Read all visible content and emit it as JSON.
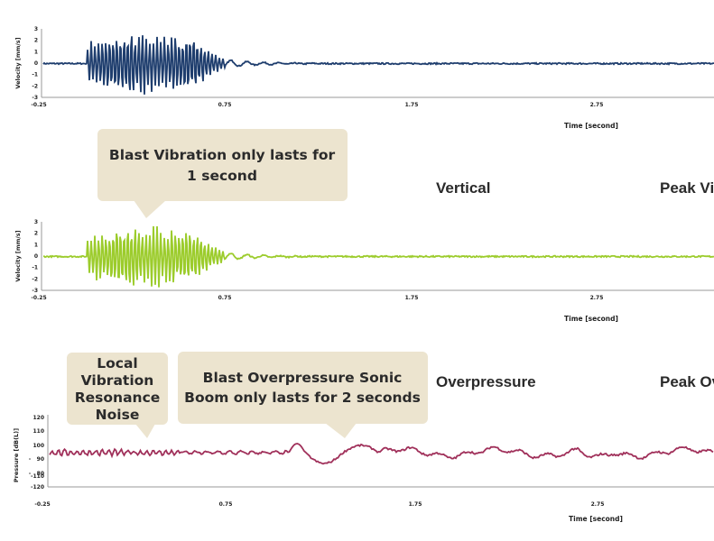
{
  "headers": {
    "vertical": "Vertical",
    "peak_vib": "Peak Vi",
    "overpressure": "Overpressure",
    "peak_ov": "Peak Ov"
  },
  "callouts": {
    "blast_vibration": [
      "Blast Vibration only lasts for",
      "1 second"
    ],
    "local_noise": [
      "Local",
      "Vibration",
      "Resonance",
      "Noise"
    ],
    "overpressure": [
      "Blast Overpressure Sonic",
      "Boom only lasts for 2 seconds"
    ]
  },
  "chart_data": [
    {
      "type": "line",
      "ylabel": "Velocity [mm/s]",
      "xlabel": "Time [second]",
      "xticks": [
        "-0.25",
        "0.75",
        "1.75",
        "2.75"
      ],
      "yticks": [
        "3",
        "2",
        "1",
        "0",
        "-1",
        "-2",
        "-3"
      ],
      "xlim": [
        -0.25,
        3.45
      ],
      "ylim": [
        -3,
        3
      ],
      "color": "#1f3e6e",
      "series": [
        {
          "burst": [
            0.0,
            0.95
          ],
          "peak": 2.8,
          "baseline": 0
        }
      ]
    },
    {
      "type": "line",
      "ylabel": "Velocity [mm/s]",
      "xlabel": "Time [second]",
      "xticks": [
        "-0.25",
        "0.75",
        "1.75",
        "2.75"
      ],
      "yticks": [
        "3",
        "2",
        "1",
        "0",
        "-1",
        "-2",
        "-3"
      ],
      "xlim": [
        -0.25,
        3.45
      ],
      "ylim": [
        -3,
        3
      ],
      "color": "#9ccc2c",
      "series": [
        {
          "burst": [
            0.0,
            0.95
          ],
          "peak": 2.9,
          "baseline": 0
        }
      ]
    },
    {
      "type": "line",
      "ylabel": "Pressure [dB(L)]",
      "xlabel": "Time [second]",
      "xticks": [
        "-0.25",
        "0.75",
        "1.75",
        "2.75"
      ],
      "yticks": [
        "120",
        "110",
        "100",
        "90",
        "80",
        "-110",
        "-120"
      ],
      "xlim": [
        -0.25,
        3.45
      ],
      "ylim": [
        -120,
        120
      ],
      "color": "#a0305a",
      "series": [
        {
          "baseline": 100,
          "event_start": 1.1,
          "event_end": 1.7
        }
      ]
    }
  ]
}
